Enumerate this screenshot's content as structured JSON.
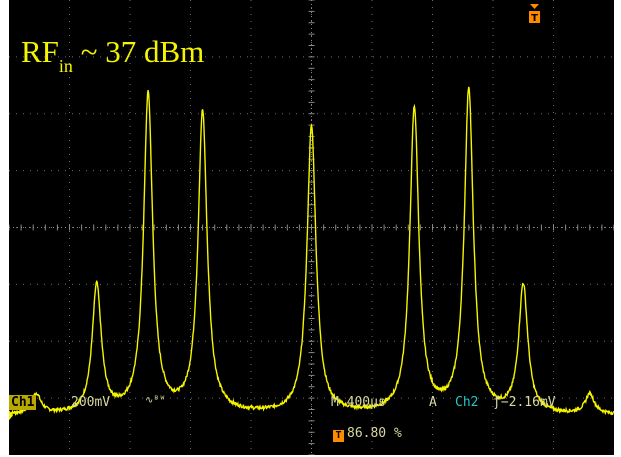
{
  "annotation": {
    "rf_main": "RF",
    "rf_sub": "in",
    "rf_value": " ~ 37 dBm"
  },
  "status": {
    "channel": "Ch1",
    "volts_div": "200mV",
    "bw_icon": "∿ᴮᵂ",
    "timebase": "M 400µs",
    "mode": "A",
    "trigger_source": "Ch2",
    "trigger_level": "ƒ−2.16mV",
    "trigger_position": "86.80 %",
    "trigger_icon_letter": "T"
  },
  "colors": {
    "trace": "#f5f500",
    "grid": "#8a8a8a",
    "trigger_marker": "#ff8a00",
    "channel2": "#22c8c8"
  },
  "chart_data": {
    "type": "line",
    "title": "",
    "xlabel": "",
    "ylabel": "",
    "grid": true,
    "xlim": [
      0,
      10
    ],
    "ylim": [
      -4,
      4
    ],
    "peaks": [
      {
        "x": 0.45,
        "y": -2.95
      },
      {
        "x": 1.45,
        "y": -1.05
      },
      {
        "x": 2.3,
        "y": 2.3
      },
      {
        "x": 3.2,
        "y": 2.0
      },
      {
        "x": 5.0,
        "y": 1.75
      },
      {
        "x": 6.7,
        "y": 2.05
      },
      {
        "x": 7.6,
        "y": 2.4
      },
      {
        "x": 8.5,
        "y": -1.05
      },
      {
        "x": 9.6,
        "y": -2.95
      }
    ],
    "baseline": -3.3
  }
}
